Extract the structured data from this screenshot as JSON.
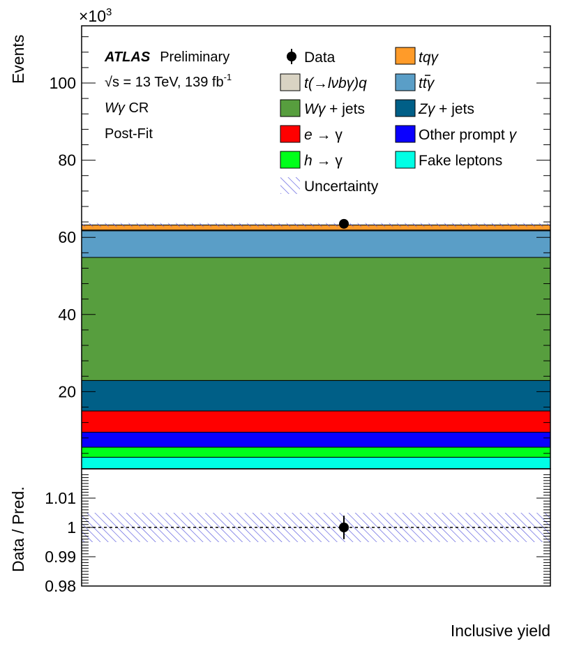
{
  "chart_data": [
    {
      "type": "bar",
      "stacked": true,
      "categories": [
        "Inclusive yield"
      ],
      "xlabel": "Inclusive yield",
      "ylabel": "Events",
      "y_multiplier_label": "×10",
      "y_multiplier_exponent": "3",
      "ylim": [
        0,
        115000
      ],
      "yticks": [
        20000,
        40000,
        60000,
        80000,
        100000
      ],
      "ytick_labels": [
        "20",
        "40",
        "60",
        "80",
        "100"
      ],
      "series": [
        {
          "name": "Fake leptons",
          "values": [
            3000
          ]
        },
        {
          "name": "h → γ",
          "values": [
            2600
          ]
        },
        {
          "name": "Other prompt γ",
          "values": [
            3900
          ]
        },
        {
          "name": "e → γ",
          "values": [
            5500
          ]
        },
        {
          "name": "Zγ + jets",
          "values": [
            7900
          ]
        },
        {
          "name": "Wγ + jets",
          "values": [
            31900
          ]
        },
        {
          "name": "tt̄γ",
          "values": [
            6900
          ]
        },
        {
          "name": "t(→lνbγ)q",
          "values": [
            200
          ]
        },
        {
          "name": "tqγ",
          "values": [
            1300
          ]
        }
      ],
      "data_points": [
        {
          "name": "Data",
          "x": "Inclusive yield",
          "y": 63500
        }
      ],
      "uncertainty_band": {
        "name": "Uncertainty"
      },
      "annotations": {
        "experiment": "ATLAS",
        "status": "Preliminary",
        "energy_lumi_sqrt": "√",
        "energy_lumi_s": "s",
        "energy_lumi_text": " = 13 TeV, 139 fb",
        "energy_lumi_sup": "-1",
        "region_sym": "Wγ",
        "region_text": " CR",
        "fit": "Post-Fit"
      },
      "legend_position": "top-right"
    },
    {
      "type": "scatter",
      "ylabel": "Data / Pred.",
      "ylim": [
        0.98,
        1.018
      ],
      "yticks": [
        0.98,
        0.99,
        1.0,
        1.01
      ],
      "ytick_labels": [
        "0.98",
        "0.99",
        "1",
        "1.01"
      ],
      "reference_line": 1.0,
      "data_points": [
        {
          "x": "Inclusive yield",
          "y": 1.0,
          "error": 0.004
        }
      ],
      "uncertainty_band": [
        0.995,
        1.005
      ]
    }
  ],
  "colors": {
    "Fake leptons": "#00ffe5",
    "h → γ": "#00ff1a",
    "Other prompt γ": "#0a00ff",
    "e → γ": "#ff0000",
    "Zγ + jets": "#005f87",
    "Wγ + jets": "#579e3e",
    "tt̄γ": "#5a9ec7",
    "t(→lνbγ)q": "#d9d3c3",
    "tqγ": "#ff9b29",
    "uncertainty": "#5555dd"
  },
  "legend": {
    "data": "Data",
    "tqy": "tqγ",
    "tlvbyq": "t(→lνbγ)q",
    "tty_t": "t",
    "tty_tbar": "t",
    "tty_gamma": "γ",
    "wyjets_sym": "Wγ",
    "wyjets_text": " + jets",
    "zyjets_sym": "Zγ",
    "zyjets_text": " + jets",
    "ey_e": "e",
    "ey_rest": " → γ",
    "other_text": "Other prompt ",
    "other_sym": "γ",
    "hy_h": "h",
    "hy_rest": " → γ",
    "fake": "Fake leptons",
    "unc": "Uncertainty"
  }
}
